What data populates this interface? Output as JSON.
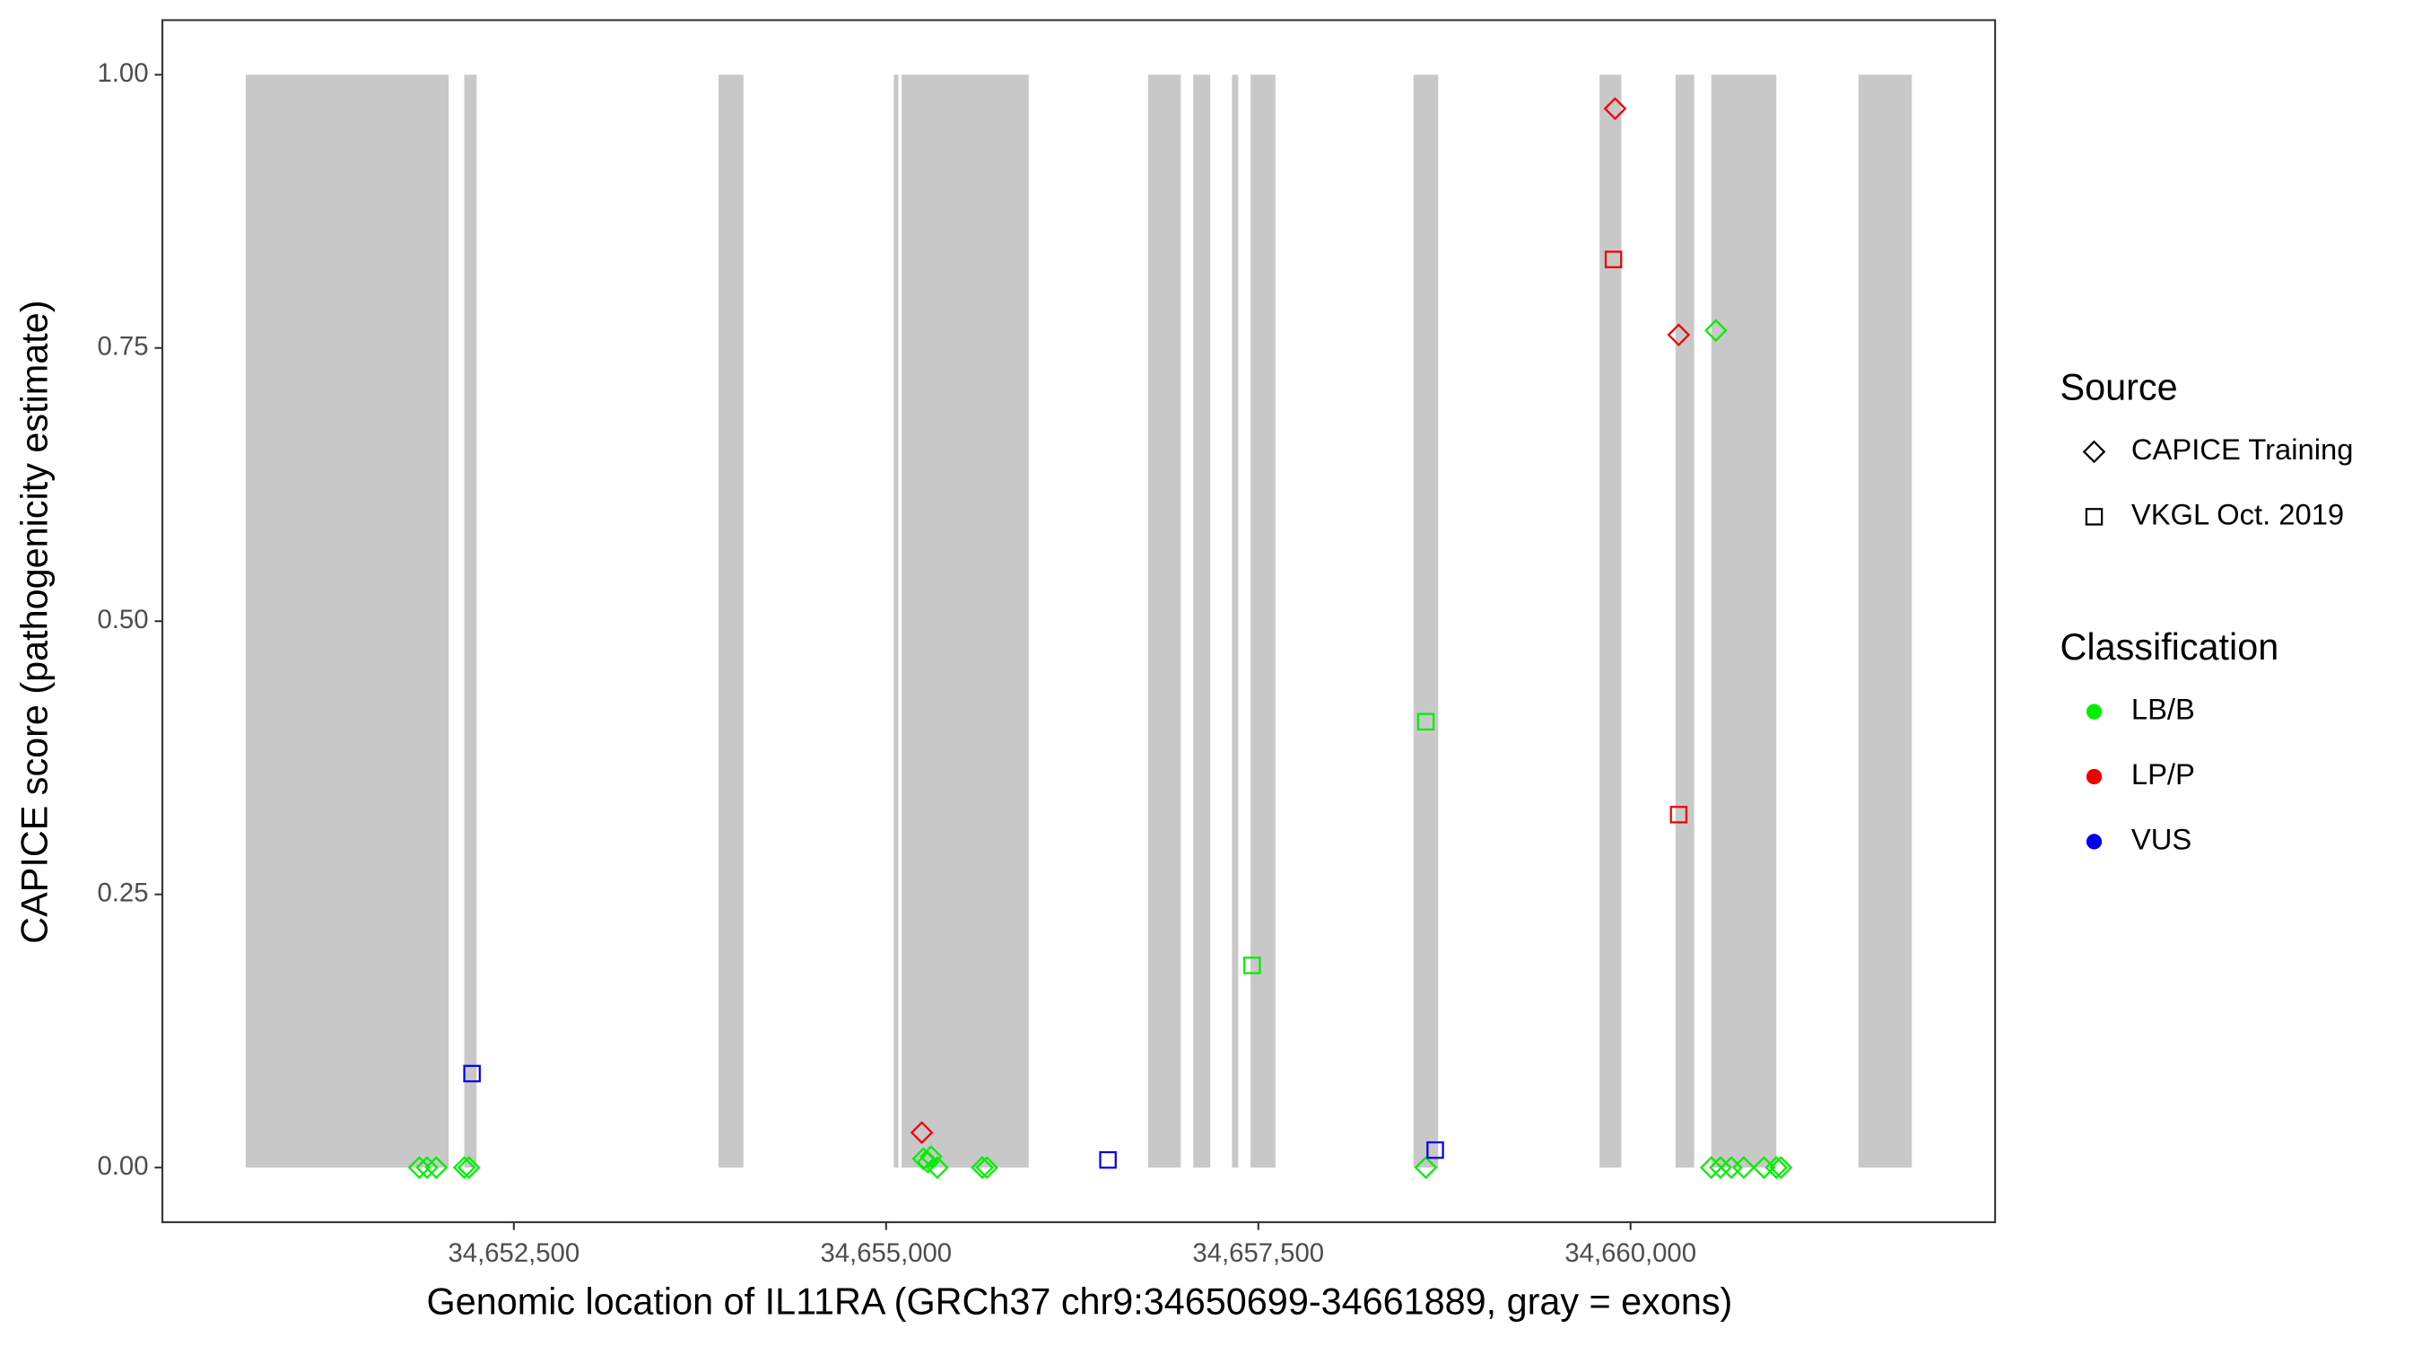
{
  "chart_data": {
    "type": "scatter",
    "x_label": "Genomic location of IL11RA (GRCh37 chr9:34650699-34661889, gray = exons)",
    "y_label": "CAPICE score (pathogenicity estimate)",
    "xlim": [
      34650139.5,
      34662448.5
    ],
    "ylim": [
      -0.05,
      1.05
    ],
    "xticks": [
      {
        "value": 34652500,
        "label": "34,652,500"
      },
      {
        "value": 34655000,
        "label": "34,655,000"
      },
      {
        "value": 34657500,
        "label": "34,657,500"
      },
      {
        "value": 34660000,
        "label": "34,660,000"
      }
    ],
    "yticks": [
      {
        "value": 0,
        "label": "0.00"
      },
      {
        "value": 0.25,
        "label": "0.25"
      },
      {
        "value": 0.5,
        "label": "0.50"
      },
      {
        "value": 0.75,
        "label": "0.75"
      },
      {
        "value": 1,
        "label": "1.00"
      }
    ],
    "grid": false,
    "exon_color": "#c8c8c8",
    "exons": [
      [
        34650699,
        34652062
      ],
      [
        34652167,
        34652250
      ],
      [
        34653875,
        34654042
      ],
      [
        34655052,
        34655083
      ],
      [
        34655104,
        34655958
      ],
      [
        34656760,
        34656979
      ],
      [
        34657063,
        34657177
      ],
      [
        34657323,
        34657365
      ],
      [
        34657448,
        34657615
      ],
      [
        34658542,
        34658708
      ],
      [
        34659792,
        34659938
      ],
      [
        34660302,
        34660427
      ],
      [
        34660542,
        34660979
      ],
      [
        34661531,
        34661889
      ]
    ],
    "series": [
      {
        "shape": "diamond",
        "color": "#00ee00",
        "x": [
          34651865,
          34651917,
          34651979,
          34652167,
          34652198,
          34655250,
          34655281,
          34655302,
          34655344,
          34655646,
          34655677,
          34658625,
          34660573,
          34660542,
          34660604,
          34660677,
          34660760,
          34660896,
          34660979,
          34661010
        ],
        "values": [
          0,
          0,
          0,
          0,
          0,
          0.008,
          0.005,
          0.01,
          0,
          0,
          0,
          0,
          0.766,
          0,
          0,
          0,
          0,
          0,
          0,
          0
        ]
      },
      {
        "shape": "diamond",
        "color": "#ee0000",
        "x": [
          34655240,
          34659896,
          34660323
        ],
        "values": [
          0.032,
          0.969,
          0.762
        ]
      },
      {
        "shape": "square",
        "color": "#0000ee",
        "x": [
          34652219,
          34656490,
          34658688
        ],
        "values": [
          0.086,
          0.007,
          0.016
        ]
      },
      {
        "shape": "square",
        "color": "#00ee00",
        "x": [
          34657458,
          34658625
        ],
        "values": [
          0.185,
          0.408
        ]
      },
      {
        "shape": "square",
        "color": "#ee0000",
        "x": [
          34659885,
          34660323
        ],
        "values": [
          0.831,
          0.323
        ]
      }
    ],
    "legend": [
      {
        "title": "Source",
        "entries": [
          {
            "label": "CAPICE Training",
            "shape": "diamond"
          },
          {
            "label": "VKGL Oct. 2019",
            "shape": "square"
          }
        ]
      },
      {
        "title": "Classification",
        "entries": [
          {
            "label": "LB/B",
            "color": "#00ee00"
          },
          {
            "label": "LP/P",
            "color": "#ee0000"
          },
          {
            "label": "VUS",
            "color": "#0000ee"
          }
        ]
      }
    ]
  }
}
